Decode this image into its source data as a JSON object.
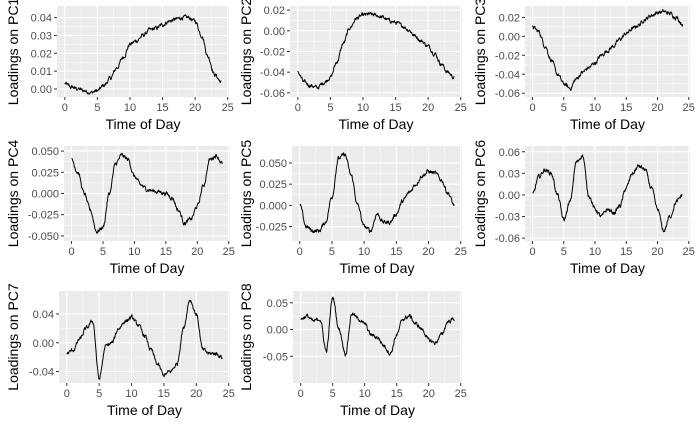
{
  "figure": {
    "background": "#ffffff",
    "panel_background": "#ebebeb",
    "grid_major": "#ffffff",
    "line_color": "#000000"
  },
  "chart_data": [
    {
      "id": "pc1",
      "type": "line",
      "xlabel": "Time of Day",
      "ylabel": "Loadings on PC1",
      "xlim": [
        -1.2,
        25.2
      ],
      "ylim": [
        -0.0045,
        0.0465
      ],
      "xticks": [
        0,
        5,
        10,
        15,
        20,
        25
      ],
      "xtick_labels": [
        "0",
        "5",
        "10",
        "15",
        "20",
        "25"
      ],
      "yticks": [
        0,
        0.01,
        0.02,
        0.03,
        0.04
      ],
      "ytick_labels": [
        "0.00",
        "0.01",
        "0.02",
        "0.03",
        "0.04"
      ],
      "grid": true,
      "x": [
        0,
        1,
        2,
        3,
        4,
        5,
        6,
        7,
        8,
        9,
        10,
        11,
        12,
        13,
        14,
        15,
        16,
        17,
        18,
        19,
        20,
        21,
        22,
        23,
        24
      ],
      "y": [
        0.003,
        0.001,
        0.0,
        -0.001,
        -0.002,
        -0.001,
        0.002,
        0.006,
        0.012,
        0.018,
        0.025,
        0.027,
        0.03,
        0.033,
        0.034,
        0.036,
        0.038,
        0.039,
        0.04,
        0.04,
        0.038,
        0.03,
        0.018,
        0.008,
        0.004
      ]
    },
    {
      "id": "pc2",
      "type": "line",
      "xlabel": "Time of Day",
      "ylabel": "Loadings on PC2",
      "xlim": [
        -1.2,
        25.2
      ],
      "ylim": [
        -0.064,
        0.024
      ],
      "xticks": [
        0,
        5,
        10,
        15,
        20,
        25
      ],
      "xtick_labels": [
        "0",
        "5",
        "10",
        "15",
        "20",
        "25"
      ],
      "yticks": [
        -0.06,
        -0.04,
        -0.02,
        0,
        0.02
      ],
      "ytick_labels": [
        "-0.06",
        "-0.04",
        "-0.02",
        "0.00",
        "0.02"
      ],
      "grid": true,
      "x": [
        0,
        1,
        2,
        3,
        4,
        5,
        6,
        7,
        8,
        9,
        10,
        11,
        12,
        13,
        14,
        15,
        16,
        17,
        18,
        19,
        20,
        21,
        22,
        23,
        24
      ],
      "y": [
        -0.04,
        -0.05,
        -0.053,
        -0.055,
        -0.05,
        -0.045,
        -0.03,
        -0.012,
        0.003,
        0.012,
        0.015,
        0.016,
        0.015,
        0.013,
        0.01,
        0.008,
        0.005,
        0.001,
        -0.005,
        -0.01,
        -0.015,
        -0.022,
        -0.032,
        -0.04,
        -0.045
      ]
    },
    {
      "id": "pc3",
      "type": "line",
      "xlabel": "Time of Day",
      "ylabel": "Loadings on PC3",
      "xlim": [
        -1.2,
        25.2
      ],
      "ylim": [
        -0.064,
        0.032
      ],
      "xticks": [
        0,
        5,
        10,
        15,
        20,
        25
      ],
      "xtick_labels": [
        "0",
        "5",
        "10",
        "15",
        "20",
        "25"
      ],
      "yticks": [
        -0.06,
        -0.04,
        -0.02,
        0,
        0.02
      ],
      "ytick_labels": [
        "-0.06",
        "-0.04",
        "-0.02",
        "0.00",
        "0.02"
      ],
      "grid": true,
      "x": [
        0,
        1,
        2,
        3,
        4,
        5,
        6,
        7,
        8,
        9,
        10,
        11,
        12,
        13,
        14,
        15,
        16,
        17,
        18,
        19,
        20,
        21,
        22,
        23,
        24
      ],
      "y": [
        0.01,
        0.005,
        -0.01,
        -0.025,
        -0.04,
        -0.05,
        -0.055,
        -0.045,
        -0.038,
        -0.033,
        -0.028,
        -0.02,
        -0.015,
        -0.01,
        -0.003,
        0.003,
        0.008,
        0.012,
        0.018,
        0.022,
        0.025,
        0.026,
        0.024,
        0.02,
        0.013
      ]
    },
    {
      "id": "pc4",
      "type": "line",
      "xlabel": "Time of Day",
      "ylabel": "Loadings on PC4",
      "xlim": [
        -1.2,
        25.2
      ],
      "ylim": [
        -0.056,
        0.056
      ],
      "xticks": [
        0,
        5,
        10,
        15,
        20,
        25
      ],
      "xtick_labels": [
        "0",
        "5",
        "10",
        "15",
        "20",
        "25"
      ],
      "yticks": [
        -0.05,
        -0.025,
        0,
        0.025,
        0.05
      ],
      "ytick_labels": [
        "-0.050",
        "-0.025",
        "0.000",
        "0.025",
        "0.050"
      ],
      "grid": true,
      "x": [
        0,
        1,
        2,
        3,
        4,
        5,
        6,
        7,
        8,
        9,
        10,
        11,
        12,
        13,
        14,
        15,
        16,
        17,
        18,
        19,
        20,
        21,
        22,
        23,
        24
      ],
      "y": [
        0.04,
        0.025,
        0.0,
        -0.02,
        -0.045,
        -0.04,
        0.0,
        0.035,
        0.045,
        0.04,
        0.02,
        0.01,
        0.005,
        0.003,
        0.002,
        0.0,
        -0.005,
        -0.02,
        -0.035,
        -0.03,
        -0.015,
        0.01,
        0.04,
        0.045,
        0.035
      ]
    },
    {
      "id": "pc5",
      "type": "line",
      "xlabel": "Time of Day",
      "ylabel": "Loadings on PC5",
      "xlim": [
        -1.2,
        25.2
      ],
      "ylim": [
        -0.042,
        0.07
      ],
      "xticks": [
        0,
        5,
        10,
        15,
        20,
        25
      ],
      "xtick_labels": [
        "0",
        "5",
        "10",
        "15",
        "20",
        "25"
      ],
      "yticks": [
        -0.025,
        0,
        0.025,
        0.05
      ],
      "ytick_labels": [
        "-0.025",
        "0.000",
        "0.025",
        "0.050"
      ],
      "grid": true,
      "x": [
        0,
        1,
        2,
        3,
        4,
        5,
        6,
        7,
        8,
        9,
        10,
        11,
        12,
        13,
        14,
        15,
        16,
        17,
        18,
        19,
        20,
        21,
        22,
        23,
        24
      ],
      "y": [
        0.0,
        -0.025,
        -0.03,
        -0.03,
        -0.02,
        0.01,
        0.055,
        0.06,
        0.035,
        0.0,
        -0.025,
        -0.03,
        -0.01,
        -0.02,
        -0.02,
        -0.01,
        0.005,
        0.015,
        0.025,
        0.035,
        0.04,
        0.038,
        0.03,
        0.015,
        0.0
      ]
    },
    {
      "id": "pc6",
      "type": "line",
      "xlabel": "Time of Day",
      "ylabel": "Loadings on PC6",
      "xlim": [
        -1.2,
        25.2
      ],
      "ylim": [
        -0.064,
        0.068
      ],
      "xticks": [
        0,
        5,
        10,
        15,
        20,
        25
      ],
      "xtick_labels": [
        "0",
        "5",
        "10",
        "15",
        "20",
        "25"
      ],
      "yticks": [
        -0.06,
        -0.03,
        0,
        0.03,
        0.06
      ],
      "ytick_labels": [
        "-0.06",
        "-0.03",
        "0.00",
        "0.03",
        "0.06"
      ],
      "grid": true,
      "x": [
        0,
        1,
        2,
        3,
        4,
        5,
        6,
        7,
        8,
        9,
        10,
        11,
        12,
        13,
        14,
        15,
        16,
        17,
        18,
        19,
        20,
        21,
        22,
        23,
        24
      ],
      "y": [
        0.0,
        0.025,
        0.035,
        0.03,
        0.0,
        -0.035,
        -0.01,
        0.045,
        0.055,
        0.0,
        -0.02,
        -0.03,
        -0.02,
        -0.025,
        -0.015,
        0.01,
        0.03,
        0.04,
        0.035,
        0.01,
        -0.02,
        -0.05,
        -0.03,
        -0.01,
        0.0
      ]
    },
    {
      "id": "pc7",
      "type": "line",
      "xlabel": "Time of Day",
      "ylabel": "Loadings on PC7",
      "xlim": [
        -1.2,
        25.2
      ],
      "ylim": [
        -0.056,
        0.072
      ],
      "xticks": [
        0,
        5,
        10,
        15,
        20,
        25
      ],
      "xtick_labels": [
        "0",
        "5",
        "10",
        "15",
        "20",
        "25"
      ],
      "yticks": [
        -0.04,
        0,
        0.04
      ],
      "ytick_labels": [
        "-0.04",
        "0.00",
        "0.04"
      ],
      "grid": true,
      "x": [
        0,
        1,
        2,
        3,
        4,
        5,
        6,
        7,
        8,
        9,
        10,
        11,
        12,
        13,
        14,
        15,
        16,
        17,
        18,
        19,
        20,
        21,
        22,
        23,
        24
      ],
      "y": [
        -0.015,
        -0.01,
        0.005,
        0.02,
        0.03,
        -0.05,
        -0.005,
        0.0,
        0.02,
        0.03,
        0.035,
        0.025,
        0.01,
        -0.01,
        -0.03,
        -0.045,
        -0.04,
        -0.03,
        0.02,
        0.06,
        0.04,
        -0.01,
        -0.015,
        -0.015,
        -0.02
      ]
    },
    {
      "id": "pc8",
      "type": "line",
      "xlabel": "Time of Day",
      "ylabel": "Loadings on PC8",
      "xlim": [
        -1.2,
        25.2
      ],
      "ylim": [
        -0.1,
        0.072
      ],
      "xticks": [
        0,
        5,
        10,
        15,
        20,
        25
      ],
      "xtick_labels": [
        "0",
        "5",
        "10",
        "15",
        "20",
        "25"
      ],
      "yticks": [
        -0.05,
        0,
        0.05
      ],
      "ytick_labels": [
        "-0.05",
        "0.00",
        "0.05"
      ],
      "grid": true,
      "x": [
        0,
        1,
        2,
        3,
        4,
        5,
        6,
        7,
        8,
        9,
        10,
        11,
        12,
        13,
        14,
        15,
        16,
        17,
        18,
        19,
        20,
        21,
        22,
        23,
        24
      ],
      "y": [
        0.02,
        0.025,
        0.015,
        0.02,
        -0.04,
        0.06,
        0.0,
        -0.045,
        0.03,
        0.02,
        0.01,
        -0.01,
        -0.015,
        -0.03,
        -0.045,
        -0.01,
        0.02,
        0.025,
        0.01,
        0.0,
        -0.02,
        -0.025,
        -0.01,
        0.015,
        0.02
      ]
    }
  ]
}
